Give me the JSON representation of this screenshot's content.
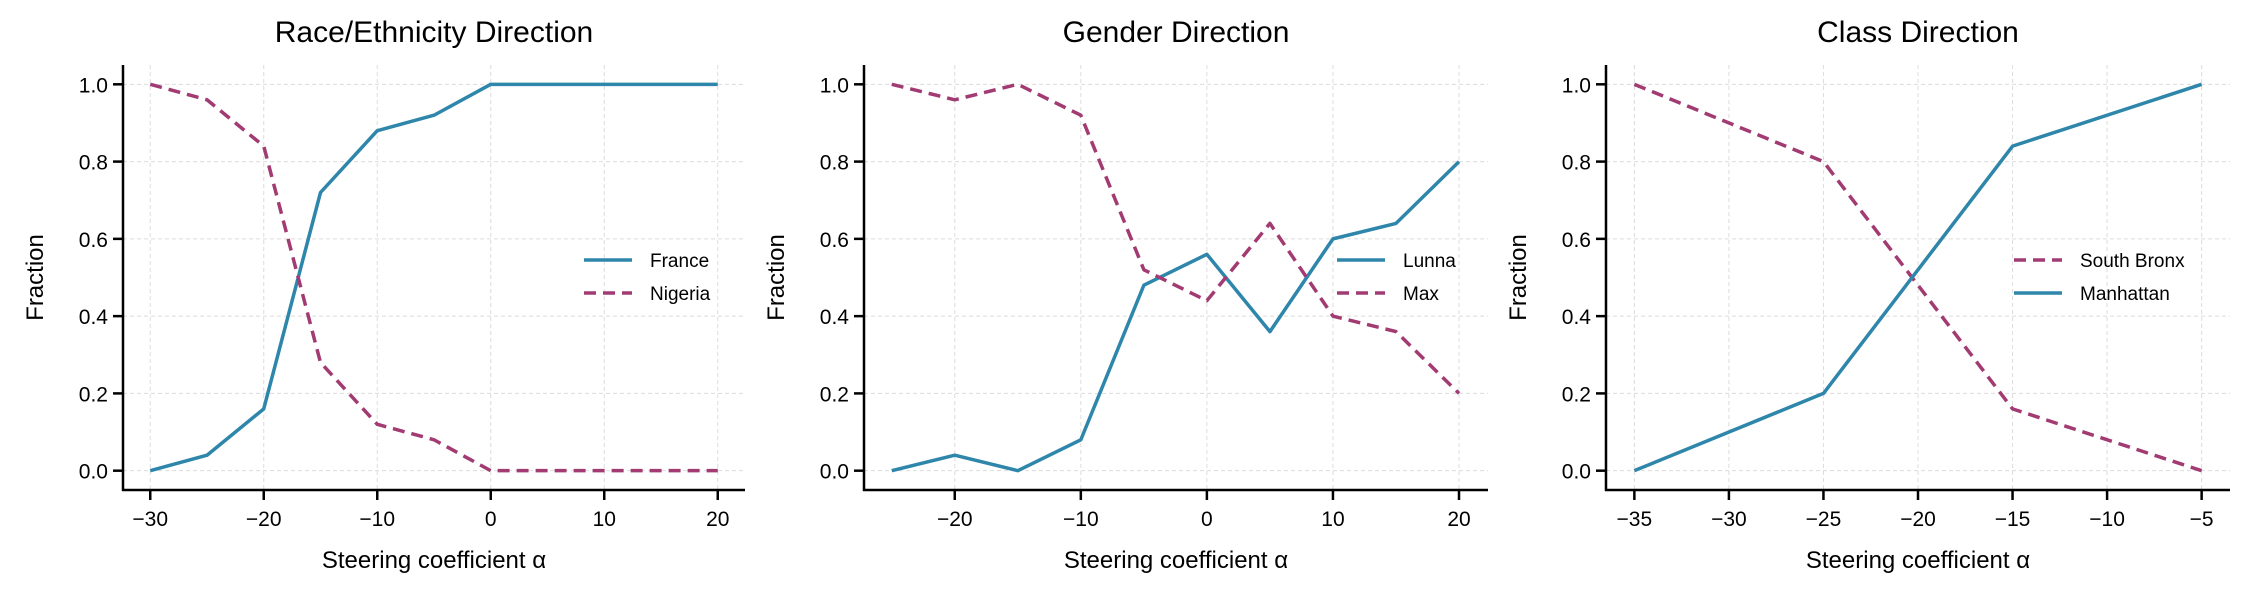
{
  "colors": {
    "blue": "#2e86ab",
    "magenta": "#a23b72"
  },
  "chart_data": [
    {
      "type": "line",
      "title": "Race/Ethnicity Direction",
      "xlabel": "Steering coefficient α",
      "ylabel": "Fraction",
      "xlim": [
        -32.4,
        22.4
      ],
      "ylim": [
        -0.05,
        1.05
      ],
      "xticks": [
        -30,
        -20,
        -10,
        0,
        10,
        20
      ],
      "xtick_labels": [
        "−30",
        "−20",
        "−10",
        "0",
        "10",
        "20"
      ],
      "yticks": [
        0,
        0.2,
        0.4,
        0.6,
        0.8,
        1.0
      ],
      "ytick_labels": [
        "0.0",
        "0.2",
        "0.4",
        "0.6",
        "0.8",
        "1.0"
      ],
      "grid": true,
      "legend_placement": "center-right",
      "x": [
        -30,
        -25,
        -20,
        -15,
        -10,
        -5,
        0,
        5,
        10,
        15,
        20
      ],
      "series": [
        {
          "name": "France",
          "style": "solid",
          "color": "#2e86ab",
          "values": [
            0,
            0.04,
            0.16,
            0.72,
            0.88,
            0.92,
            1.0,
            1.0,
            1.0,
            1.0,
            1.0
          ]
        },
        {
          "name": "Nigeria",
          "style": "dashed",
          "color": "#a23b72",
          "values": [
            1.0,
            0.96,
            0.84,
            0.28,
            0.12,
            0.08,
            0,
            0,
            0,
            0,
            0
          ]
        }
      ]
    },
    {
      "type": "line",
      "title": "Gender Direction",
      "xlabel": "Steering coefficient α",
      "ylabel": "Fraction",
      "xlim": [
        -27.2,
        22.3
      ],
      "ylim": [
        -0.05,
        1.05
      ],
      "xticks": [
        -20,
        -10,
        0,
        10,
        20
      ],
      "xtick_labels": [
        "−20",
        "−10",
        "0",
        "10",
        "20"
      ],
      "yticks": [
        0,
        0.2,
        0.4,
        0.6,
        0.8,
        1.0
      ],
      "ytick_labels": [
        "0.0",
        "0.2",
        "0.4",
        "0.6",
        "0.8",
        "1.0"
      ],
      "grid": true,
      "legend_placement": "center-right",
      "x": [
        -25,
        -20,
        -15,
        -10,
        -5,
        0,
        5,
        10,
        15,
        20
      ],
      "series": [
        {
          "name": "Lunna",
          "style": "solid",
          "color": "#2e86ab",
          "values": [
            0,
            0.04,
            0,
            0.08,
            0.48,
            0.56,
            0.36,
            0.6,
            0.64,
            0.8
          ]
        },
        {
          "name": "Max",
          "style": "dashed",
          "color": "#a23b72",
          "values": [
            1.0,
            0.96,
            1.0,
            0.92,
            0.52,
            0.44,
            0.64,
            0.4,
            0.36,
            0.2
          ]
        }
      ]
    },
    {
      "type": "line",
      "title": "Class Direction",
      "xlabel": "Steering coefficient α",
      "ylabel": "Fraction",
      "xlim": [
        -36.5,
        -3.5
      ],
      "ylim": [
        -0.05,
        1.05
      ],
      "xticks": [
        -35,
        -30,
        -25,
        -20,
        -15,
        -10,
        -5
      ],
      "xtick_labels": [
        "−35",
        "−30",
        "−25",
        "−20",
        "−15",
        "−10",
        "−5"
      ],
      "yticks": [
        0,
        0.2,
        0.4,
        0.6,
        0.8,
        1.0
      ],
      "ytick_labels": [
        "0.0",
        "0.2",
        "0.4",
        "0.6",
        "0.8",
        "1.0"
      ],
      "grid": true,
      "legend_placement": "center-right",
      "x": [
        -35,
        -25,
        -15,
        -5
      ],
      "series": [
        {
          "name": "South Bronx",
          "style": "dashed",
          "color": "#a23b72",
          "values": [
            1.0,
            0.8,
            0.16,
            0
          ]
        },
        {
          "name": "Manhattan",
          "style": "solid",
          "color": "#2e86ab",
          "values": [
            0,
            0.2,
            0.84,
            1.0
          ]
        }
      ]
    }
  ]
}
